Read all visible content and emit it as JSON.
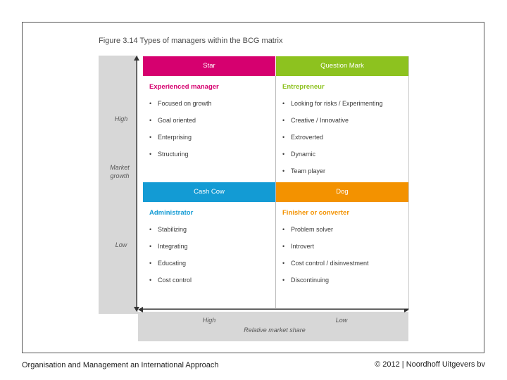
{
  "figure_title": "Figure 3.14   Types of managers within the BCG matrix",
  "axes": {
    "y_high": "High",
    "y_label_line1": "Market",
    "y_label_line2": "growth",
    "y_low": "Low",
    "x_high": "High",
    "x_low": "Low",
    "x_label": "Relative market share"
  },
  "quadrants": [
    {
      "header": "Star",
      "header_color": "#d6006f",
      "role": "Experienced manager",
      "role_color": "#d6006f",
      "items": [
        "Focused on growth",
        "Goal oriented",
        "Enterprising",
        "Structuring"
      ]
    },
    {
      "header": "Question Mark",
      "header_color": "#8dc21f",
      "role": "Entrepreneur",
      "role_color": "#8dc21f",
      "items": [
        "Looking for risks / Experimenting",
        "Creative / Innovative",
        "Extroverted",
        "Dynamic",
        "Team player"
      ]
    },
    {
      "header": "Cash Cow",
      "header_color": "#139bd4",
      "role": "Administrator",
      "role_color": "#139bd4",
      "items": [
        "Stabilizing",
        "Integrating",
        "Educating",
        "Cost control"
      ]
    },
    {
      "header": "Dog",
      "header_color": "#f39200",
      "role": "Finisher or converter",
      "role_color": "#f39200",
      "items": [
        "Problem solver",
        "Introvert",
        "Cost control / disinvestment",
        "Discontinuing"
      ]
    }
  ],
  "footer": {
    "left": "Organisation and Management an International Approach",
    "right": "© 2012  |  Noordhoff Uitgevers bv"
  }
}
